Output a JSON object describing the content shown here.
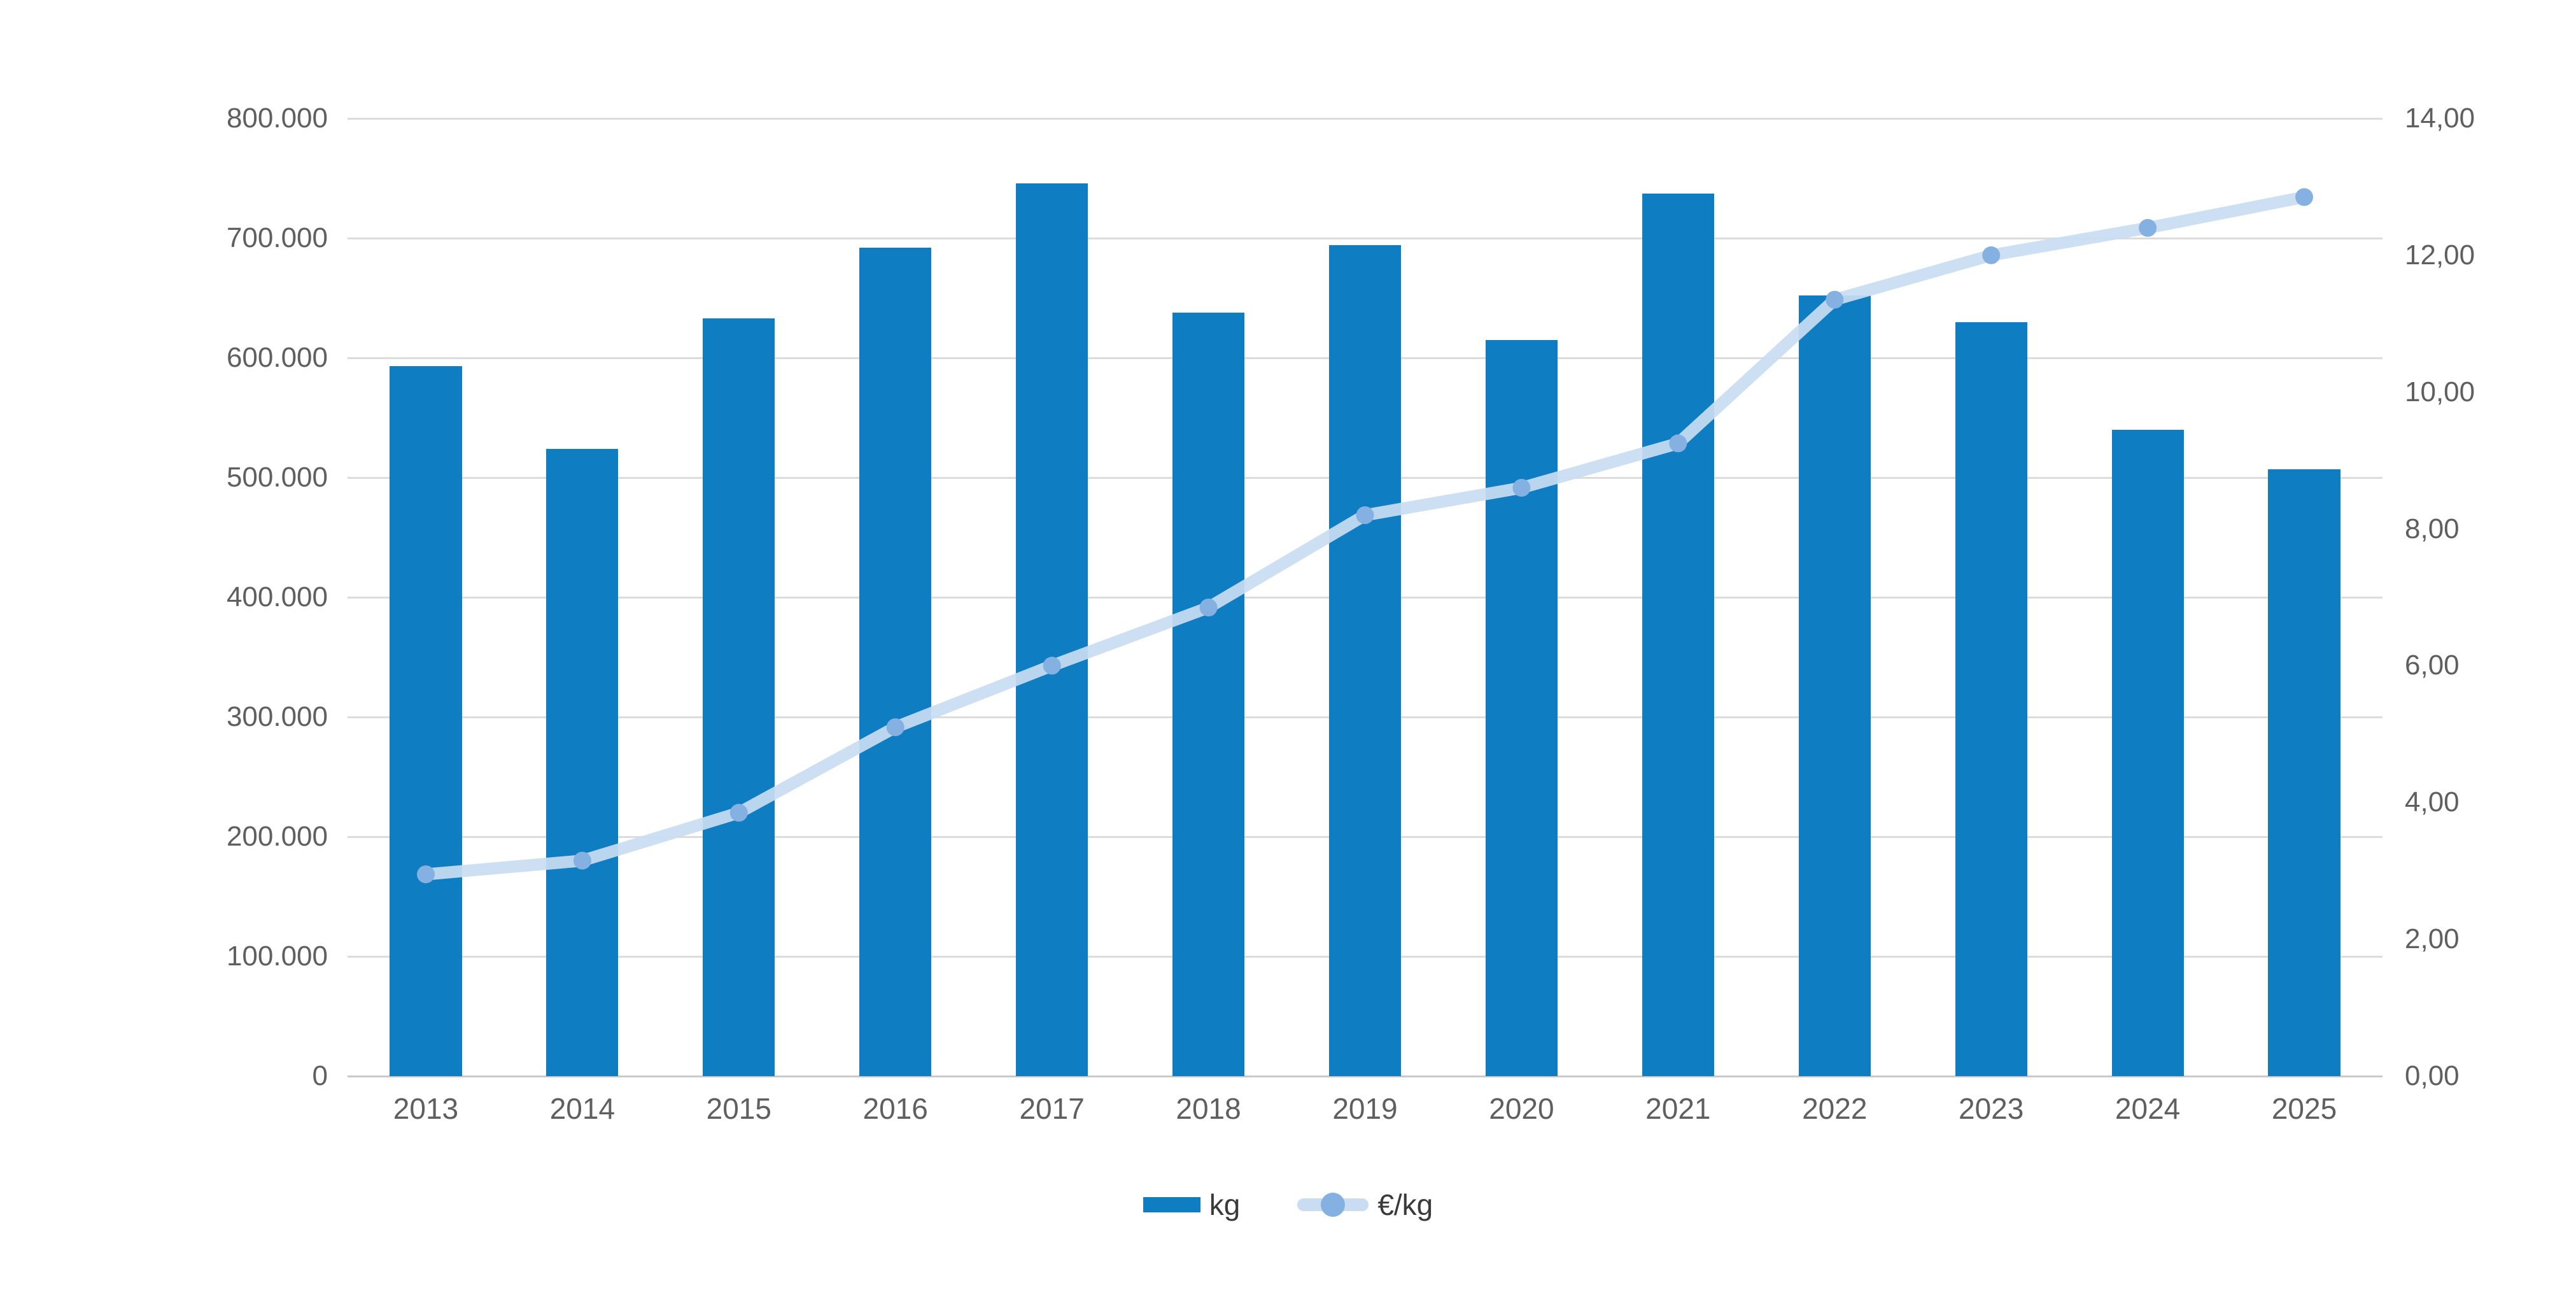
{
  "chart_data": {
    "type": "combo",
    "title": "",
    "categories": [
      "2013",
      "2014",
      "2015",
      "2016",
      "2017",
      "2018",
      "2019",
      "2020",
      "2021",
      "2022",
      "2023",
      "2024",
      "2025"
    ],
    "series": [
      {
        "name": "kg",
        "type": "bar",
        "axis": "left",
        "color": "#0f7dc2",
        "values": [
          593000,
          524000,
          633000,
          692000,
          746000,
          638000,
          694000,
          615000,
          737000,
          652000,
          630000,
          540000,
          507000
        ]
      },
      {
        "name": "€/kg",
        "type": "line",
        "axis": "right",
        "color": "#c9dcf2",
        "point_color": "#85b1e2",
        "values": [
          2.95,
          3.15,
          3.85,
          5.1,
          6.0,
          6.85,
          8.2,
          8.6,
          9.25,
          11.35,
          12.0,
          12.4,
          12.85
        ]
      }
    ],
    "left_axis": {
      "min": 0,
      "max": 800000,
      "tick_labels": [
        "800.000",
        "700.000",
        "600.000",
        "500.000",
        "400.000",
        "300.000",
        "200.000",
        "100.000",
        "0"
      ]
    },
    "right_axis": {
      "min": 0,
      "max": 14,
      "tick_labels": [
        "14,00",
        "12,00",
        "10,00",
        "8,00",
        "6,00",
        "4,00",
        "2,00",
        "0,00"
      ]
    },
    "grid": true,
    "legend_position": "bottom",
    "colors": {
      "bar": "#0f7dc2",
      "line": "#c9dcf2",
      "point": "#85b1e2",
      "gridline": "#dcdcdc",
      "baseline": "#c9c9c9",
      "tick_text": "#5f5f5f",
      "legend_text": "#3a3a3a",
      "background": "#ffffff"
    }
  },
  "legend": {
    "kg_label": "kg",
    "eur_per_kg_label": "€/kg"
  }
}
